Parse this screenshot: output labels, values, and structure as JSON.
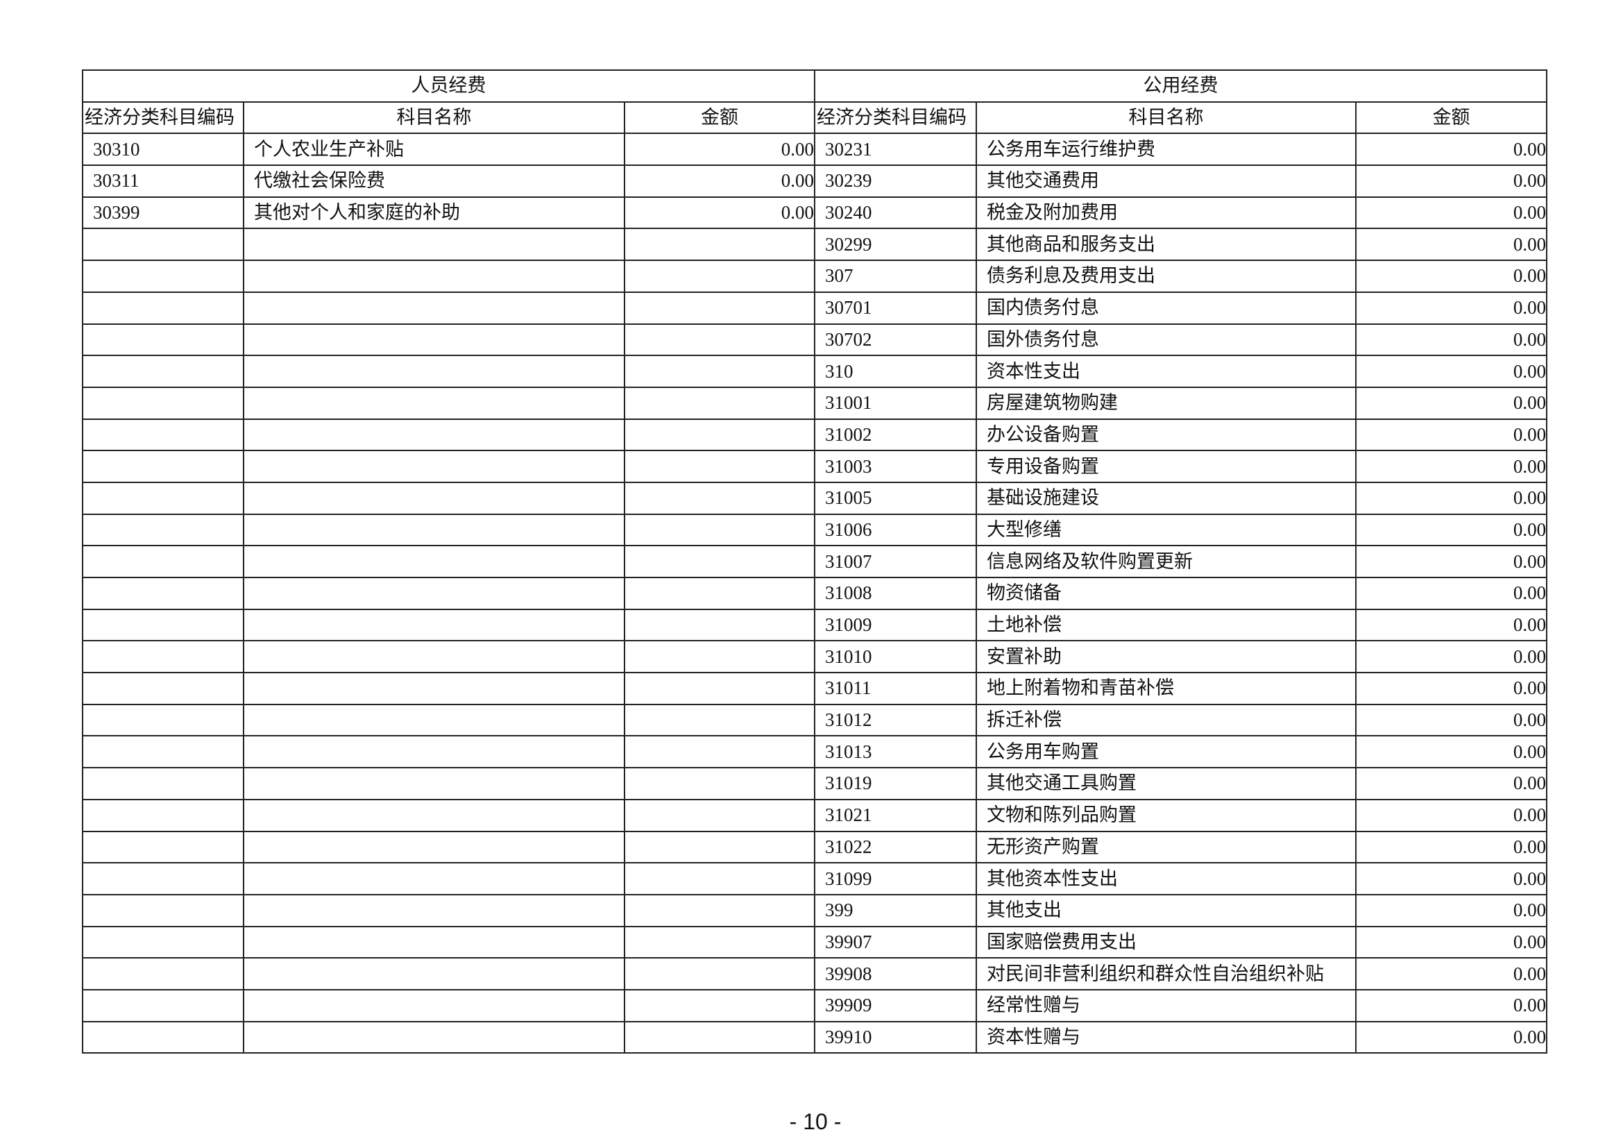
{
  "sections": {
    "personnel": "人员经费",
    "public": "公用经费"
  },
  "columns": {
    "code": "经济分类科目编码",
    "name": "科目名称",
    "amount": "金额"
  },
  "personnel_rows": [
    {
      "code": "30310",
      "name": "个人农业生产补贴",
      "amount": "0.00"
    },
    {
      "code": "30311",
      "name": "代缴社会保险费",
      "amount": "0.00"
    },
    {
      "code": "30399",
      "name": "其他对个人和家庭的补助",
      "amount": "0.00"
    }
  ],
  "public_rows": [
    {
      "code": "30231",
      "name": "公务用车运行维护费",
      "amount": "0.00"
    },
    {
      "code": "30239",
      "name": "其他交通费用",
      "amount": "0.00"
    },
    {
      "code": "30240",
      "name": "税金及附加费用",
      "amount": "0.00"
    },
    {
      "code": "30299",
      "name": "其他商品和服务支出",
      "amount": "0.00"
    },
    {
      "code": "307",
      "name": "债务利息及费用支出",
      "amount": "0.00"
    },
    {
      "code": "30701",
      "name": "国内债务付息",
      "amount": "0.00"
    },
    {
      "code": "30702",
      "name": "国外债务付息",
      "amount": "0.00"
    },
    {
      "code": "310",
      "name": "资本性支出",
      "amount": "0.00"
    },
    {
      "code": "31001",
      "name": "房屋建筑物购建",
      "amount": "0.00"
    },
    {
      "code": "31002",
      "name": "办公设备购置",
      "amount": "0.00"
    },
    {
      "code": "31003",
      "name": "专用设备购置",
      "amount": "0.00"
    },
    {
      "code": "31005",
      "name": "基础设施建设",
      "amount": "0.00"
    },
    {
      "code": "31006",
      "name": "大型修缮",
      "amount": "0.00"
    },
    {
      "code": "31007",
      "name": "信息网络及软件购置更新",
      "amount": "0.00"
    },
    {
      "code": "31008",
      "name": "物资储备",
      "amount": "0.00"
    },
    {
      "code": "31009",
      "name": "土地补偿",
      "amount": "0.00"
    },
    {
      "code": "31010",
      "name": "安置补助",
      "amount": "0.00"
    },
    {
      "code": "31011",
      "name": "地上附着物和青苗补偿",
      "amount": "0.00"
    },
    {
      "code": "31012",
      "name": "拆迁补偿",
      "amount": "0.00"
    },
    {
      "code": "31013",
      "name": "公务用车购置",
      "amount": "0.00"
    },
    {
      "code": "31019",
      "name": "其他交通工具购置",
      "amount": "0.00"
    },
    {
      "code": "31021",
      "name": "文物和陈列品购置",
      "amount": "0.00"
    },
    {
      "code": "31022",
      "name": "无形资产购置",
      "amount": "0.00"
    },
    {
      "code": "31099",
      "name": "其他资本性支出",
      "amount": "0.00"
    },
    {
      "code": "399",
      "name": "其他支出",
      "amount": "0.00"
    },
    {
      "code": "39907",
      "name": "国家赔偿费用支出",
      "amount": "0.00"
    },
    {
      "code": "39908",
      "name": "对民间非营利组织和群众性自治组织补贴",
      "amount": "0.00"
    },
    {
      "code": "39909",
      "name": "经常性赠与",
      "amount": "0.00"
    },
    {
      "code": "39910",
      "name": "资本性赠与",
      "amount": "0.00"
    }
  ],
  "page_number": "- 10 -"
}
